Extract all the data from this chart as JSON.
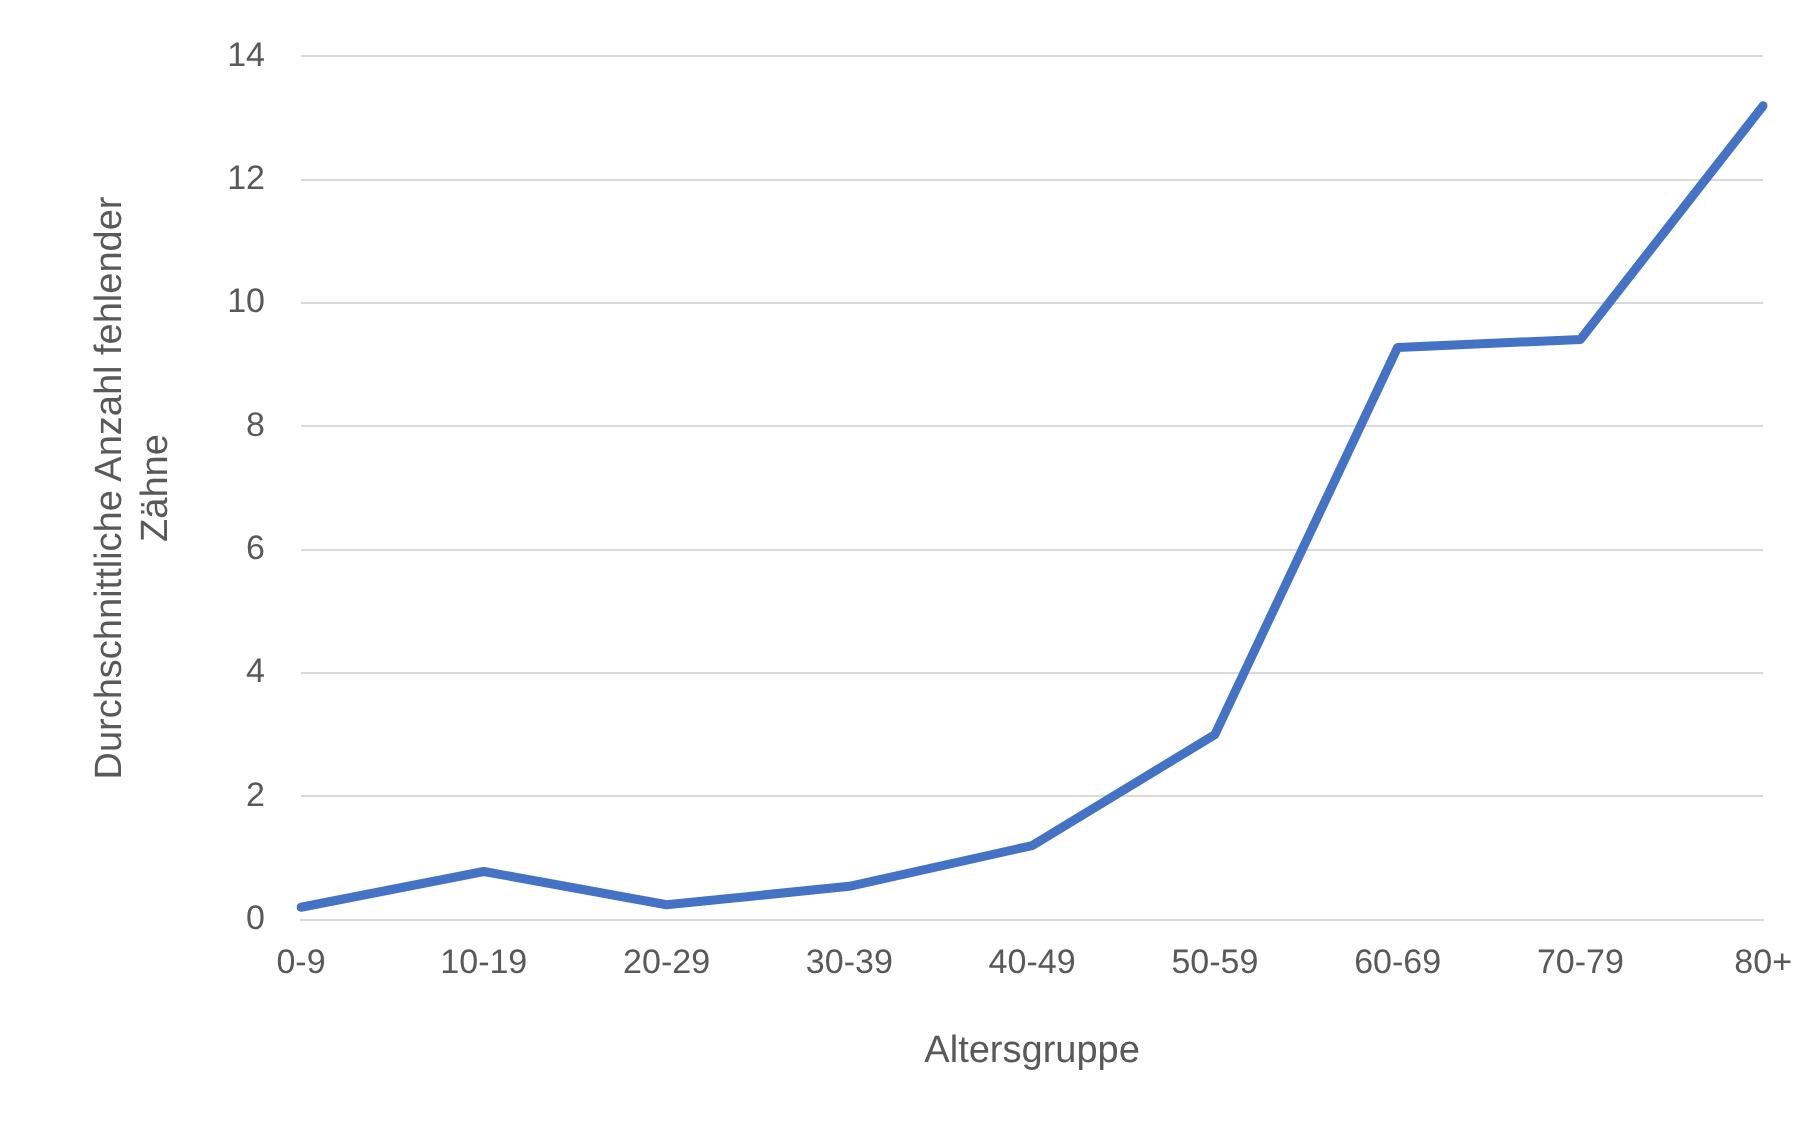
{
  "chart_data": {
    "type": "line",
    "xlabel": "Altersgruppe",
    "ylabel": "Durchschnittliche Anzahl fehlender Zähne",
    "categories": [
      "0-9",
      "10-19",
      "20-29",
      "30-39",
      "40-49",
      "50-59",
      "60-69",
      "70-79",
      "80+"
    ],
    "series": [
      {
        "color": "#4472c4",
        "values": [
          0.2,
          0.78,
          0.24,
          0.54,
          1.2,
          3.0,
          9.28,
          9.41,
          13.2
        ]
      }
    ],
    "ylim": [
      0,
      14
    ],
    "yticks": [
      0,
      2,
      4,
      6,
      8,
      10,
      12,
      14
    ],
    "grid": "y",
    "legend": false,
    "marker": "none"
  }
}
